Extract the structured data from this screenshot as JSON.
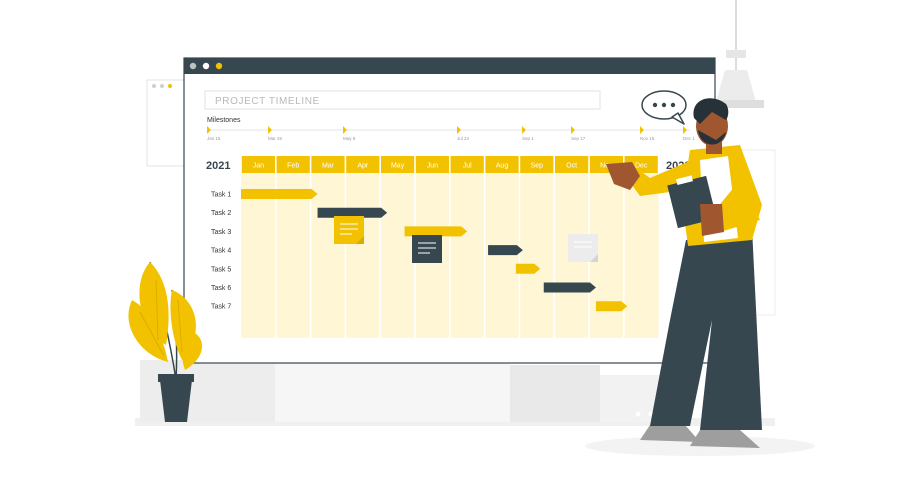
{
  "window": {
    "title": "PROJECT TIMELINE",
    "dots": [
      "#b9c3c0",
      "#ffffff",
      "#f2c200"
    ]
  },
  "milestones": {
    "label": "Milestones",
    "dates": [
      "Jan 15",
      "Mar 25",
      "May 8",
      "Jul 24",
      "Sep 1",
      "Sep 17",
      "Nov 15",
      "Dec 1"
    ]
  },
  "timeline": {
    "year_start": "2021",
    "year_end": "2022",
    "months": [
      "Jan",
      "Feb",
      "Mar",
      "Apr",
      "May",
      "Jun",
      "Jul",
      "Aug",
      "Sep",
      "Oct",
      "Nov",
      "Dec"
    ]
  },
  "tasks": [
    {
      "label": "Task 1",
      "start": 0.0,
      "end": 2.2,
      "color": "#f2c200"
    },
    {
      "label": "Task 2",
      "start": 2.2,
      "end": 4.2,
      "color": "#37474f"
    },
    {
      "label": "Task 3",
      "start": 4.7,
      "end": 6.5,
      "color": "#f2c200"
    },
    {
      "label": "Task 4",
      "start": 7.1,
      "end": 8.1,
      "color": "#37474f"
    },
    {
      "label": "Task 5",
      "start": 7.9,
      "end": 8.6,
      "color": "#f2c200"
    },
    {
      "label": "Task 6",
      "start": 8.7,
      "end": 10.2,
      "color": "#37474f"
    },
    {
      "label": "Task 7",
      "start": 10.2,
      "end": 11.1,
      "color": "#f2c200"
    }
  ],
  "colors": {
    "accent": "#f2c200",
    "dark": "#37474f",
    "header_bar": "#37474f",
    "grid_bg": "#fff6d6",
    "skin": "#a0572f"
  },
  "icons": [
    "speech-bubble-icon",
    "sticky-note-icon",
    "pendant-lamp-icon",
    "plant-icon"
  ]
}
